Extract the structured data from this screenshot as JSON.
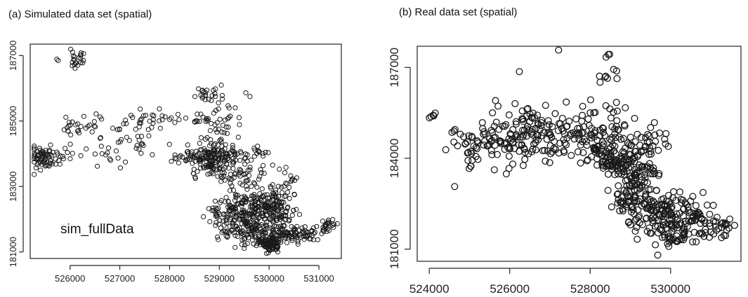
{
  "chart_data": [
    {
      "type": "scatter",
      "title": "(a) Simulated data set (spatial)",
      "xlabel": "",
      "ylabel": "",
      "xlim": [
        525200,
        531450
      ],
      "ylim": [
        180800,
        187350
      ],
      "x_ticks": [
        526000,
        527000,
        528000,
        529000,
        530000,
        531000
      ],
      "y_ticks": [
        181000,
        183000,
        185000,
        187000
      ],
      "annotation": "sim_fullData",
      "grid": false,
      "marker": "open-circle",
      "clusters": [
        {
          "x": 526150,
          "y": 186900,
          "sx": 90,
          "sy": 130,
          "n": 22
        },
        {
          "x": 525800,
          "y": 186800,
          "sx": 50,
          "sy": 50,
          "n": 2
        },
        {
          "x": 525450,
          "y": 183850,
          "sx": 130,
          "sy": 170,
          "n": 70
        },
        {
          "x": 525900,
          "y": 184000,
          "sx": 80,
          "sy": 150,
          "n": 8
        },
        {
          "x": 526200,
          "y": 184850,
          "sx": 190,
          "sy": 180,
          "n": 28
        },
        {
          "x": 526700,
          "y": 184000,
          "sx": 260,
          "sy": 170,
          "n": 18
        },
        {
          "x": 527200,
          "y": 184500,
          "sx": 260,
          "sy": 230,
          "n": 22
        },
        {
          "x": 527600,
          "y": 185050,
          "sx": 300,
          "sy": 150,
          "n": 30
        },
        {
          "x": 528300,
          "y": 183850,
          "sx": 260,
          "sy": 160,
          "n": 24
        },
        {
          "x": 528800,
          "y": 185800,
          "sx": 140,
          "sy": 180,
          "n": 22
        },
        {
          "x": 528950,
          "y": 185000,
          "sx": 280,
          "sy": 250,
          "n": 45
        },
        {
          "x": 528900,
          "y": 183900,
          "sx": 260,
          "sy": 270,
          "n": 180
        },
        {
          "x": 529500,
          "y": 183400,
          "sx": 300,
          "sy": 350,
          "n": 50
        },
        {
          "x": 529800,
          "y": 184050,
          "sx": 160,
          "sy": 150,
          "n": 12
        },
        {
          "x": 529350,
          "y": 182150,
          "sx": 300,
          "sy": 300,
          "n": 150
        },
        {
          "x": 529900,
          "y": 182500,
          "sx": 270,
          "sy": 300,
          "n": 120
        },
        {
          "x": 530200,
          "y": 182200,
          "sx": 200,
          "sy": 260,
          "n": 60
        },
        {
          "x": 530350,
          "y": 183300,
          "sx": 110,
          "sy": 130,
          "n": 12
        },
        {
          "x": 529700,
          "y": 181650,
          "sx": 290,
          "sy": 210,
          "n": 100
        },
        {
          "x": 530000,
          "y": 181250,
          "sx": 110,
          "sy": 90,
          "n": 120
        },
        {
          "x": 530400,
          "y": 181550,
          "sx": 230,
          "sy": 140,
          "n": 60
        },
        {
          "x": 530800,
          "y": 181500,
          "sx": 150,
          "sy": 100,
          "n": 20
        },
        {
          "x": 531150,
          "y": 181800,
          "sx": 130,
          "sy": 120,
          "n": 26
        }
      ]
    },
    {
      "type": "scatter",
      "title": "(b) Real data set (spatial)",
      "xlabel": "",
      "ylabel": "",
      "xlim": [
        523700,
        531750
      ],
      "ylim": [
        180600,
        187700
      ],
      "x_ticks": [
        524000,
        526000,
        528000,
        530000
      ],
      "y_ticks": [
        181000,
        184000,
        187000
      ],
      "grid": false,
      "marker": "open-circle",
      "clusters": [
        {
          "x": 524050,
          "y": 185400,
          "sx": 60,
          "sy": 100,
          "n": 5
        },
        {
          "x": 524650,
          "y": 184900,
          "sx": 90,
          "sy": 60,
          "n": 4
        },
        {
          "x": 525200,
          "y": 184400,
          "sx": 320,
          "sy": 400,
          "n": 45
        },
        {
          "x": 525700,
          "y": 185000,
          "sx": 300,
          "sy": 350,
          "n": 25
        },
        {
          "x": 526200,
          "y": 184300,
          "sx": 280,
          "sy": 340,
          "n": 35
        },
        {
          "x": 526700,
          "y": 185100,
          "sx": 300,
          "sy": 330,
          "n": 45
        },
        {
          "x": 527400,
          "y": 184800,
          "sx": 380,
          "sy": 420,
          "n": 55
        },
        {
          "x": 528000,
          "y": 185000,
          "sx": 260,
          "sy": 320,
          "n": 30
        },
        {
          "x": 528300,
          "y": 184200,
          "sx": 250,
          "sy": 280,
          "n": 40
        },
        {
          "x": 528700,
          "y": 185000,
          "sx": 220,
          "sy": 400,
          "n": 25
        },
        {
          "x": 528750,
          "y": 183900,
          "sx": 220,
          "sy": 300,
          "n": 70
        },
        {
          "x": 529200,
          "y": 183400,
          "sx": 250,
          "sy": 350,
          "n": 60
        },
        {
          "x": 529500,
          "y": 184500,
          "sx": 240,
          "sy": 300,
          "n": 28
        },
        {
          "x": 529100,
          "y": 182500,
          "sx": 280,
          "sy": 300,
          "n": 60
        },
        {
          "x": 529700,
          "y": 182200,
          "sx": 330,
          "sy": 360,
          "n": 80
        },
        {
          "x": 530100,
          "y": 181500,
          "sx": 280,
          "sy": 220,
          "n": 50
        },
        {
          "x": 530500,
          "y": 182100,
          "sx": 280,
          "sy": 300,
          "n": 40
        },
        {
          "x": 530900,
          "y": 181800,
          "sx": 260,
          "sy": 250,
          "n": 20
        },
        {
          "x": 531300,
          "y": 181700,
          "sx": 150,
          "sy": 140,
          "n": 15
        },
        {
          "x": 528500,
          "y": 186600,
          "sx": 220,
          "sy": 400,
          "n": 10
        },
        {
          "x": 527250,
          "y": 187550,
          "sx": 30,
          "sy": 30,
          "n": 1
        },
        {
          "x": 528450,
          "y": 187450,
          "sx": 70,
          "sy": 40,
          "n": 2
        },
        {
          "x": 526200,
          "y": 186900,
          "sx": 40,
          "sy": 40,
          "n": 1
        }
      ]
    }
  ],
  "labels": {
    "title_a": "(a) Simulated data set (spatial)",
    "title_b": "(b) Real data set (spatial)",
    "annotation_a": "sim_fullData"
  },
  "colors": {
    "marker": "#1a1a1a",
    "axis": "#222222",
    "background": "#ffffff"
  }
}
